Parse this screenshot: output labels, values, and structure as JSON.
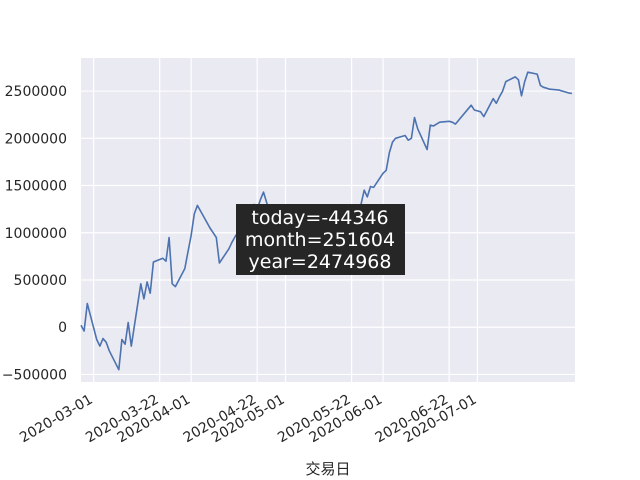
{
  "chart_data": {
    "type": "line",
    "xlabel": "交易日",
    "ylabel": "",
    "grid": true,
    "background_color": "#eaeaf2",
    "line_color": "#4c72b0",
    "x_range": [
      "2020-02-26",
      "2020-08-01"
    ],
    "ylim": [
      -580000,
      2850000
    ],
    "x_ticks": [
      "2020-03-01",
      "2020-03-22",
      "2020-04-01",
      "2020-04-22",
      "2020-05-01",
      "2020-05-22",
      "2020-06-01",
      "2020-06-22",
      "2020-07-01"
    ],
    "y_ticks": [
      {
        "value": -500000,
        "label": "−500000"
      },
      {
        "value": 0,
        "label": "0"
      },
      {
        "value": 500000,
        "label": "500000"
      },
      {
        "value": 1000000,
        "label": "1000000"
      },
      {
        "value": 1500000,
        "label": "1500000"
      },
      {
        "value": 2000000,
        "label": "2000000"
      },
      {
        "value": 2500000,
        "label": "2500000"
      }
    ],
    "series": [
      {
        "x": [
          "2020-02-26",
          "2020-02-27",
          "2020-02-28",
          "2020-03-02",
          "2020-03-03",
          "2020-03-04",
          "2020-03-05",
          "2020-03-06",
          "2020-03-09",
          "2020-03-10",
          "2020-03-11",
          "2020-03-12",
          "2020-03-13",
          "2020-03-16",
          "2020-03-17",
          "2020-03-18",
          "2020-03-19",
          "2020-03-20",
          "2020-03-23",
          "2020-03-24",
          "2020-03-25",
          "2020-03-26",
          "2020-03-27",
          "2020-03-30",
          "2020-03-31",
          "2020-04-01",
          "2020-04-02",
          "2020-04-03",
          "2020-04-07",
          "2020-04-08",
          "2020-04-09",
          "2020-04-10",
          "2020-04-13",
          "2020-04-14",
          "2020-04-15",
          "2020-04-16",
          "2020-04-17",
          "2020-04-20",
          "2020-04-21",
          "2020-04-22",
          "2020-04-23",
          "2020-04-24",
          "2020-04-27",
          "2020-04-28",
          "2020-04-29",
          "2020-04-30",
          "2020-05-06",
          "2020-05-07",
          "2020-05-08",
          "2020-05-11",
          "2020-05-12",
          "2020-05-13",
          "2020-05-14",
          "2020-05-15",
          "2020-05-18",
          "2020-05-19",
          "2020-05-20",
          "2020-05-21",
          "2020-05-22",
          "2020-05-25",
          "2020-05-26",
          "2020-05-27",
          "2020-05-28",
          "2020-05-29",
          "2020-06-01",
          "2020-06-02",
          "2020-06-03",
          "2020-06-04",
          "2020-06-05",
          "2020-06-08",
          "2020-06-09",
          "2020-06-10",
          "2020-06-11",
          "2020-06-12",
          "2020-06-15",
          "2020-06-16",
          "2020-06-17",
          "2020-06-18",
          "2020-06-19",
          "2020-06-22",
          "2020-06-23",
          "2020-06-24",
          "2020-06-29",
          "2020-06-30",
          "2020-07-01",
          "2020-07-02",
          "2020-07-03",
          "2020-07-06",
          "2020-07-07",
          "2020-07-08",
          "2020-07-09",
          "2020-07-10",
          "2020-07-13",
          "2020-07-14",
          "2020-07-15",
          "2020-07-16",
          "2020-07-17",
          "2020-07-20",
          "2020-07-21",
          "2020-07-22",
          "2020-07-23",
          "2020-07-24",
          "2020-07-27",
          "2020-07-28",
          "2020-07-29",
          "2020-07-30",
          "2020-07-31"
        ],
        "y": [
          20000,
          -40000,
          250000,
          -130000,
          -200000,
          -120000,
          -160000,
          -250000,
          -450000,
          -130000,
          -180000,
          50000,
          -200000,
          460000,
          300000,
          480000,
          360000,
          690000,
          730000,
          700000,
          950000,
          460000,
          430000,
          620000,
          800000,
          970000,
          1200000,
          1290000,
          1050000,
          1000000,
          950000,
          680000,
          830000,
          900000,
          960000,
          1010000,
          1050000,
          1080000,
          1300000,
          1250000,
          1350000,
          1430000,
          1100000,
          1000000,
          950000,
          900000,
          850000,
          800000,
          700000,
          650000,
          600000,
          700000,
          800000,
          900000,
          1000000,
          1050000,
          1100000,
          1150000,
          1200000,
          1300000,
          1450000,
          1380000,
          1490000,
          1480000,
          1630000,
          1660000,
          1850000,
          1960000,
          2000000,
          2030000,
          1980000,
          2000000,
          2220000,
          2100000,
          1880000,
          2140000,
          2130000,
          2150000,
          2170000,
          2180000,
          2170000,
          2150000,
          2350000,
          2300000,
          2290000,
          2280000,
          2230000,
          2420000,
          2370000,
          2440000,
          2500000,
          2600000,
          2650000,
          2620000,
          2450000,
          2600000,
          2700000,
          2680000,
          2560000,
          2540000,
          2530000,
          2520000,
          2510000,
          2500000,
          2490000,
          2480000,
          2474968
        ]
      }
    ],
    "tooltip": {
      "lines": [
        "today=-44346",
        "month=251604",
        "year=2474968"
      ],
      "background": "#262626",
      "text_color": "#ffffff"
    }
  }
}
